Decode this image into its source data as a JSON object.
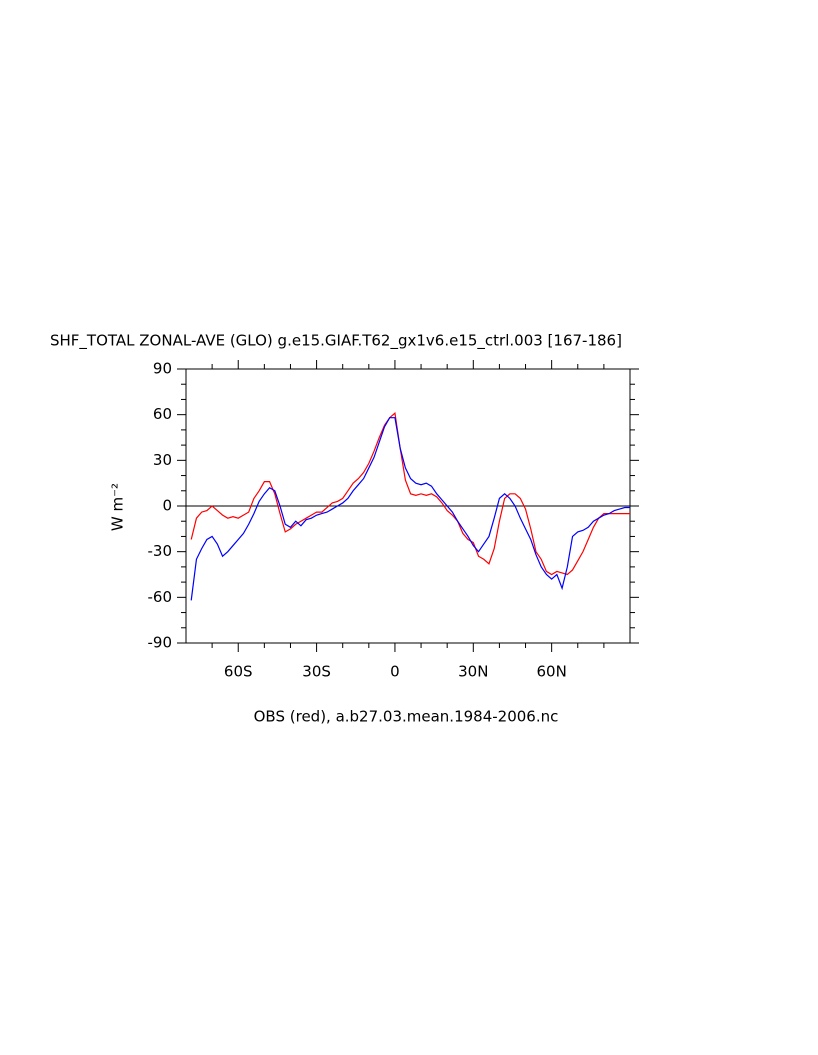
{
  "chart_data": {
    "type": "line",
    "title": "SHF_TOTAL ZONAL-AVE (GLO) g.e15.GIAF.T62_gx1v6.e15_ctrl.003 [167-186]",
    "ylabel": "W m⁻²",
    "subtitle": "OBS (red), a.b27.03.mean.1984-2006.nc",
    "xlim": [
      -80,
      90
    ],
    "xticks": [
      {
        "value": -60,
        "label": "60S"
      },
      {
        "value": -30,
        "label": "30S"
      },
      0,
      {
        "value": 30,
        "label": "30N"
      },
      {
        "value": 60,
        "label": "60N"
      }
    ],
    "ylim": [
      -90,
      90
    ],
    "yticks": [
      -90,
      -60,
      -30,
      0,
      30,
      60,
      90
    ],
    "reference_line": 0,
    "x": [
      -78,
      -76,
      -74,
      -72,
      -70,
      -68,
      -66,
      -64,
      -62,
      -60,
      -58,
      -56,
      -54,
      -52,
      -50,
      -48,
      -46,
      -44,
      -42,
      -40,
      -38,
      -36,
      -34,
      -32,
      -30,
      -28,
      -26,
      -24,
      -22,
      -20,
      -18,
      -16,
      -14,
      -12,
      -10,
      -8,
      -6,
      -4,
      -2,
      0,
      2,
      4,
      6,
      8,
      10,
      12,
      14,
      16,
      18,
      20,
      22,
      24,
      26,
      28,
      30,
      32,
      34,
      36,
      38,
      40,
      42,
      44,
      46,
      48,
      50,
      52,
      54,
      56,
      58,
      60,
      62,
      64,
      66,
      68,
      70,
      72,
      74,
      76,
      78,
      80,
      82,
      84,
      86,
      88,
      90
    ],
    "series": [
      {
        "color": "#ff0000",
        "values": [
          -22,
          -8,
          -4,
          -3,
          0,
          -3,
          -6,
          -8,
          -7,
          -8,
          -6,
          -4,
          5,
          10,
          16,
          16,
          8,
          -5,
          -17,
          -15,
          -12,
          -10,
          -8,
          -6,
          -4,
          -4,
          -1,
          2,
          3,
          5,
          10,
          15,
          18,
          22,
          28,
          36,
          45,
          53,
          58,
          61,
          38,
          17,
          8,
          7,
          8,
          7,
          8,
          6,
          2,
          -3,
          -6,
          -10,
          -18,
          -22,
          -24,
          -33,
          -35,
          -38,
          -28,
          -10,
          5,
          8,
          8,
          5,
          -2,
          -15,
          -30,
          -35,
          -43,
          -45,
          -43,
          -44,
          -45,
          -42,
          -36,
          -30,
          -22,
          -14,
          -8,
          -5,
          -5,
          -5,
          -5,
          -5,
          -5
        ]
      },
      {
        "color": "#0000ff",
        "values": [
          -62,
          -35,
          -28,
          -22,
          -20,
          -25,
          -33,
          -30,
          -26,
          -22,
          -18,
          -12,
          -5,
          3,
          8,
          12,
          10,
          0,
          -12,
          -14,
          -10,
          -13,
          -9,
          -8,
          -6,
          -5,
          -4,
          -2,
          0,
          2,
          5,
          10,
          14,
          18,
          25,
          32,
          42,
          52,
          58,
          58,
          38,
          25,
          18,
          15,
          14,
          15,
          13,
          8,
          4,
          0,
          -4,
          -10,
          -15,
          -20,
          -26,
          -30,
          -25,
          -20,
          -8,
          5,
          8,
          5,
          0,
          -8,
          -15,
          -22,
          -32,
          -40,
          -45,
          -48,
          -45,
          -54,
          -40,
          -20,
          -17,
          -16,
          -14,
          -10,
          -8,
          -6,
          -5,
          -3,
          -2,
          -1,
          -1
        ]
      }
    ]
  }
}
